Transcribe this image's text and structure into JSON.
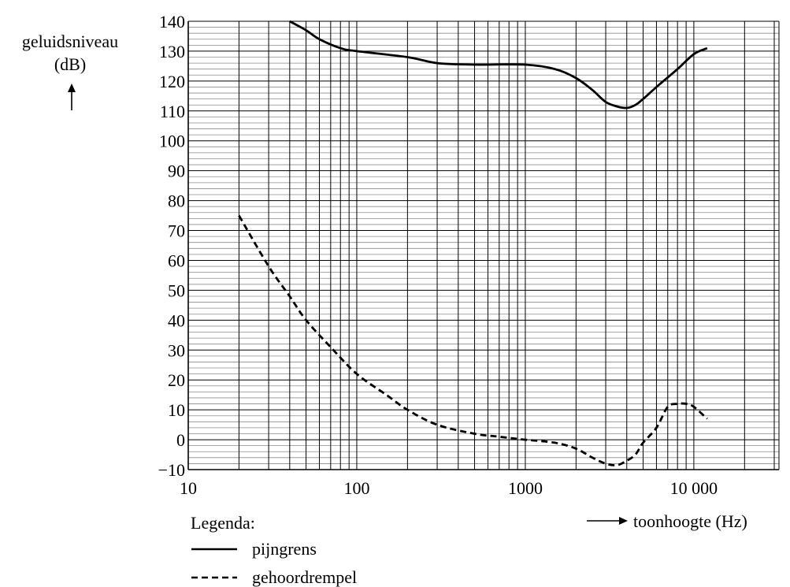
{
  "chart_data": {
    "type": "line",
    "title": "",
    "ylabel_lines": [
      "geluidsniveau",
      "(dB)"
    ],
    "xlabel": "toonhoogte (Hz)",
    "x_scale": "log",
    "xlim": [
      10,
      32000
    ],
    "ylim": [
      -10,
      140
    ],
    "grid": true,
    "x_ticks": [
      10,
      100,
      1000,
      10000
    ],
    "x_tick_labels": [
      "10",
      "100",
      "1000",
      "10 000"
    ],
    "y_ticks": [
      -10,
      0,
      10,
      20,
      30,
      40,
      50,
      60,
      70,
      80,
      90,
      100,
      110,
      120,
      130,
      140
    ],
    "y_tick_labels": [
      "−10",
      "0",
      "10",
      "20",
      "30",
      "40",
      "50",
      "60",
      "70",
      "80",
      "90",
      "100",
      "110",
      "120",
      "130",
      "140"
    ],
    "legend_title": "Legenda:",
    "legend_position": "bottom-left",
    "series": [
      {
        "name": "pijngrens",
        "style": "solid",
        "color": "#000000",
        "x": [
          40,
          50,
          60,
          80,
          100,
          200,
          300,
          500,
          1000,
          1500,
          2000,
          2500,
          3000,
          3500,
          4000,
          4500,
          5000,
          6000,
          8000,
          10000,
          12000
        ],
        "y": [
          140,
          137,
          134,
          131,
          130,
          128,
          126,
          125.5,
          125.5,
          124,
          121,
          117,
          113,
          111.5,
          111,
          112,
          114,
          118,
          124,
          129,
          131
        ]
      },
      {
        "name": "gehoordrempel",
        "style": "dashed",
        "color": "#000000",
        "x": [
          20,
          30,
          40,
          50,
          70,
          100,
          150,
          200,
          300,
          500,
          700,
          1000,
          1500,
          2000,
          2500,
          3000,
          3500,
          4000,
          4500,
          5000,
          6000,
          7000,
          8000,
          9000,
          10000,
          12000
        ],
        "y": [
          75,
          58,
          48,
          40,
          31,
          22,
          15,
          10,
          5,
          2,
          1,
          0,
          -1,
          -3,
          -6,
          -8,
          -8.5,
          -7,
          -5,
          -1,
          4,
          11,
          12,
          12,
          11,
          7
        ]
      }
    ]
  }
}
